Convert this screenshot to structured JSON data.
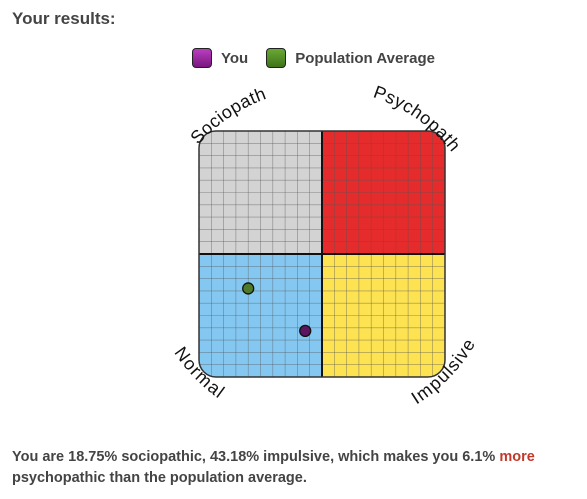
{
  "heading": "Your results:",
  "legend": [
    {
      "label": "You",
      "color": "#9b1fa0"
    },
    {
      "label": "Population Average",
      "color": "#4e8a22"
    }
  ],
  "chart_data": {
    "type": "scatter",
    "grid": true,
    "quadrants": [
      {
        "name": "Sociopath",
        "color": "#d3d3d3"
      },
      {
        "name": "Psychopath",
        "color": "#e52b2b"
      },
      {
        "name": "Normal",
        "color": "#84c8f2"
      },
      {
        "name": "Impulsive",
        "color": "#fde252"
      }
    ],
    "x_label": "",
    "y_label": "",
    "x_range": [
      0,
      100
    ],
    "y_range": [
      0,
      100
    ],
    "points": [
      {
        "series": "You",
        "x": 43.18,
        "y": 18.75,
        "color": "#5b1561"
      },
      {
        "series": "Population Average",
        "x": 20,
        "y": 36,
        "color": "#4e7a2a"
      }
    ]
  },
  "result": {
    "prefix": "You are 18.75% sociopathic, 43.18% impulsive, which makes you 6.1% ",
    "highlight": "more",
    "suffix": " psychopathic than the population average."
  }
}
